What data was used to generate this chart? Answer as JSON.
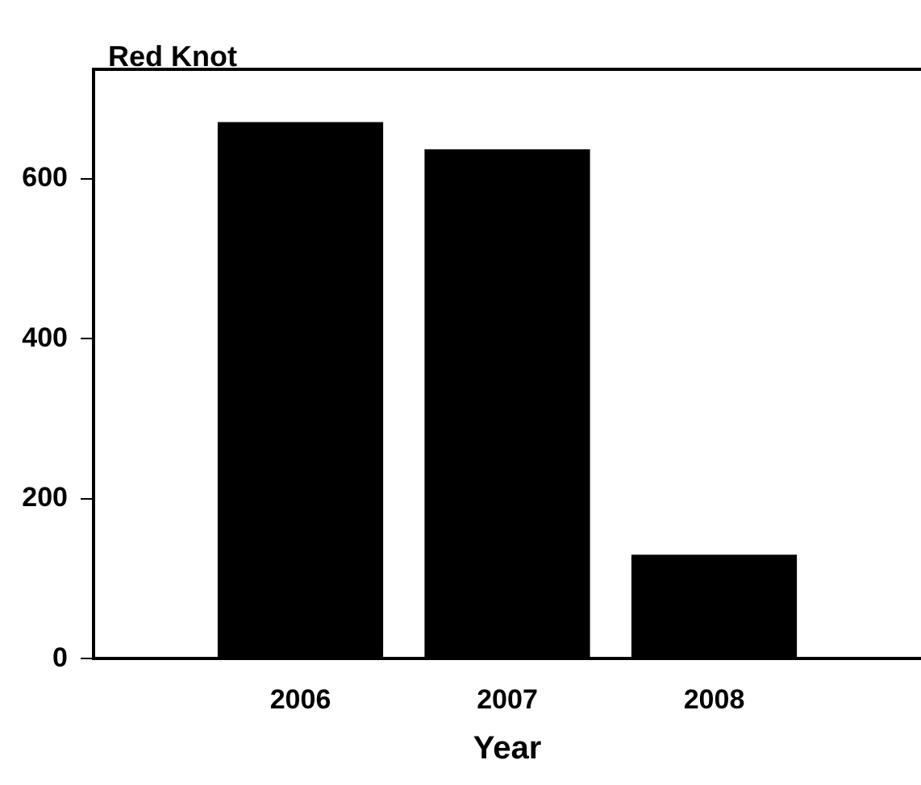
{
  "chart_data": {
    "type": "bar",
    "title": "Red Knot",
    "xlabel": "Year",
    "categories": [
      "2006",
      "2007",
      "2008"
    ],
    "values": [
      671,
      637,
      130
    ],
    "color": "#000000",
    "ylim": [
      0,
      737
    ],
    "yticks": [
      0,
      200,
      400,
      600
    ],
    "grid": false
  }
}
